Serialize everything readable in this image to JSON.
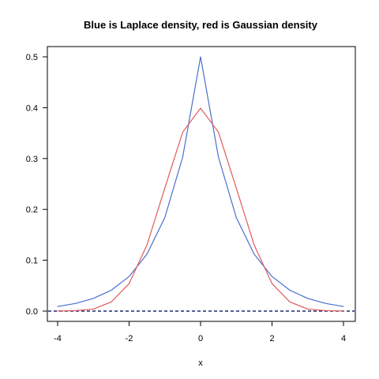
{
  "chart_data": {
    "type": "line",
    "title": "Blue is Laplace density, red is Gaussian density",
    "xlabel": "x",
    "ylabel": "",
    "xlim": [
      -4,
      4
    ],
    "ylim": [
      0,
      0.5
    ],
    "xticks": [
      "-4",
      "-2",
      "0",
      "2",
      "4"
    ],
    "yticks": [
      "0.0",
      "0.1",
      "0.2",
      "0.3",
      "0.4",
      "0.5"
    ],
    "grid": false,
    "legend": "none",
    "series": [
      {
        "color": "#4a6fcf",
        "x": [
          -4.0,
          -3.5,
          -3.0,
          -2.5,
          -2.0,
          -1.5,
          -1.0,
          -0.5,
          0.0,
          0.5,
          1.0,
          1.5,
          2.0,
          2.5,
          3.0,
          3.5,
          4.0
        ],
        "y": [
          0.009,
          0.015,
          0.025,
          0.041,
          0.068,
          0.112,
          0.184,
          0.303,
          0.5,
          0.303,
          0.184,
          0.112,
          0.068,
          0.041,
          0.025,
          0.015,
          0.009
        ]
      },
      {
        "color": "#e05a5a",
        "x": [
          -4.0,
          -3.5,
          -3.0,
          -2.5,
          -2.0,
          -1.5,
          -1.0,
          -0.5,
          0.0,
          0.5,
          1.0,
          1.5,
          2.0,
          2.5,
          3.0,
          3.5,
          4.0
        ],
        "y": [
          0.0001,
          0.001,
          0.004,
          0.018,
          0.054,
          0.13,
          0.242,
          0.352,
          0.399,
          0.352,
          0.242,
          0.13,
          0.054,
          0.018,
          0.004,
          0.001,
          0.0001
        ]
      }
    ],
    "reference_line": {
      "y": 0,
      "color": "#1f2a6b",
      "style": "dashed"
    }
  }
}
